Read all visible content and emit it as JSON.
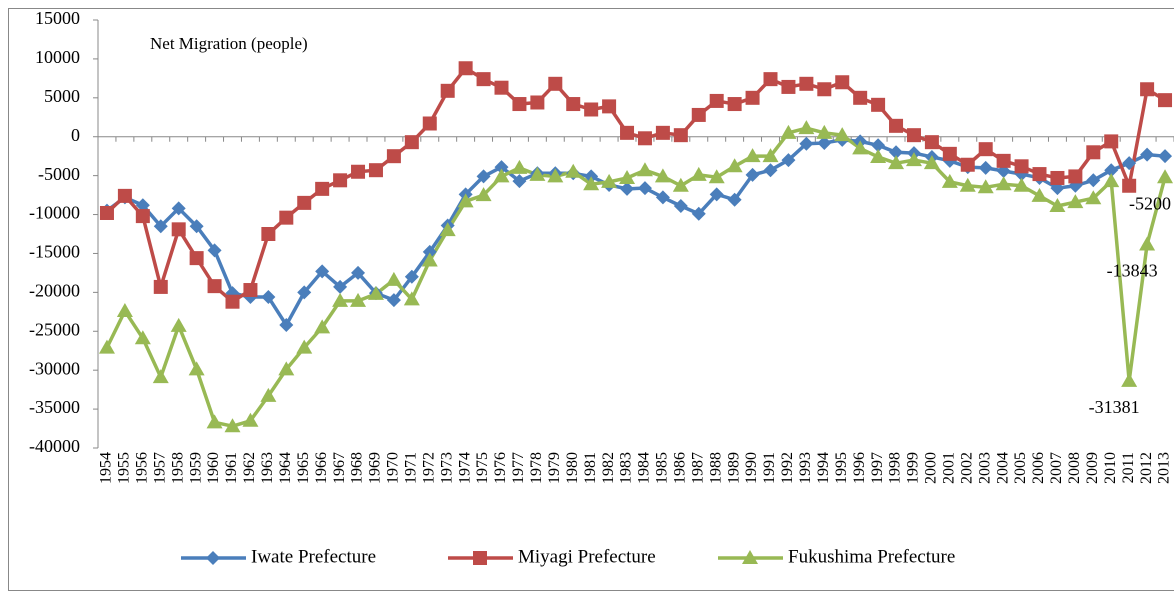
{
  "chart_data": {
    "type": "line",
    "title": "Net Migration (people)",
    "categories": [
      "1954",
      "1955",
      "1956",
      "1957",
      "1958",
      "1959",
      "1960",
      "1961",
      "1962",
      "1963",
      "1964",
      "1965",
      "1966",
      "1967",
      "1968",
      "1969",
      "1970",
      "1971",
      "1972",
      "1973",
      "1974",
      "1975",
      "1976",
      "1977",
      "1978",
      "1979",
      "1980",
      "1981",
      "1982",
      "1983",
      "1984",
      "1985",
      "1986",
      "1987",
      "1988",
      "1989",
      "1990",
      "1991",
      "1992",
      "1993",
      "1994",
      "1995",
      "1996",
      "1997",
      "1998",
      "1999",
      "2000",
      "2001",
      "2002",
      "2003",
      "2004",
      "2005",
      "2006",
      "2007",
      "2008",
      "2009",
      "2010",
      "2011",
      "2012",
      "2013"
    ],
    "series": [
      {
        "name": "Iwate Prefecture",
        "color": "#4a7ebb",
        "marker": "diamond",
        "values": [
          -9500,
          -7800,
          -8800,
          -11500,
          -9200,
          -11500,
          -14600,
          -20100,
          -20600,
          -20600,
          -24200,
          -20000,
          -17300,
          -19300,
          -17500,
          -20100,
          -21000,
          -18000,
          -14800,
          -11400,
          -7400,
          -5100,
          -3900,
          -5700,
          -4700,
          -4700,
          -4700,
          -5100,
          -6200,
          -6700,
          -6600,
          -7800,
          -8900,
          -9900,
          -7400,
          -8100,
          -4900,
          -4300,
          -3000,
          -900,
          -800,
          -400,
          -600,
          -1100,
          -2000,
          -2100,
          -2600,
          -3100,
          -3900,
          -4000,
          -4400,
          -4800,
          -5300,
          -6600,
          -6300,
          -5600,
          -4300,
          -3400,
          -2300,
          -2500
        ]
      },
      {
        "name": "Miyagi Prefecture",
        "color": "#be4b48",
        "marker": "square",
        "values": [
          -9800,
          -7600,
          -10200,
          -19300,
          -11900,
          -15600,
          -19200,
          -21200,
          -19700,
          -12500,
          -10400,
          -8500,
          -6700,
          -5600,
          -4500,
          -4300,
          -2500,
          -700,
          1700,
          5900,
          8800,
          7400,
          6300,
          4200,
          4400,
          6800,
          4200,
          3500,
          3900,
          500,
          -200,
          500,
          200,
          2800,
          4600,
          4200,
          5000,
          7400,
          6400,
          6800,
          6100,
          7000,
          5000,
          4100,
          1400,
          200,
          -700,
          -2200,
          -3600,
          -1600,
          -3100,
          -3800,
          -4800,
          -5300,
          -5100,
          -2000,
          -600,
          -6300,
          6100,
          4700
        ]
      },
      {
        "name": "Fukushima Prefecture",
        "color": "#98b954",
        "marker": "triangle",
        "values": [
          -27100,
          -22400,
          -25900,
          -30900,
          -24300,
          -29900,
          -36700,
          -37200,
          -36500,
          -33300,
          -29900,
          -27100,
          -24500,
          -21100,
          -21100,
          -20200,
          -18400,
          -20900,
          -15900,
          -12000,
          -8300,
          -7500,
          -5100,
          -4000,
          -4900,
          -5100,
          -4500,
          -6100,
          -5800,
          -5300,
          -4300,
          -5100,
          -6300,
          -4900,
          -5200,
          -3800,
          -2500,
          -2500,
          500,
          1100,
          500,
          200,
          -1500,
          -2600,
          -3400,
          -3000,
          -3400,
          -5800,
          -6300,
          -6500,
          -6100,
          -6300,
          -7600,
          -8900,
          -8400,
          -7900,
          -5700,
          -31381,
          -13843,
          -5200
        ],
        "value_labels": [
          null,
          null,
          null,
          null,
          null,
          null,
          null,
          null,
          null,
          null,
          null,
          null,
          null,
          null,
          null,
          null,
          null,
          null,
          null,
          null,
          null,
          null,
          null,
          null,
          null,
          null,
          null,
          null,
          null,
          null,
          null,
          null,
          null,
          null,
          null,
          null,
          null,
          null,
          null,
          null,
          null,
          null,
          null,
          null,
          null,
          null,
          null,
          null,
          null,
          null,
          null,
          null,
          null,
          null,
          null,
          null,
          null,
          "-31381",
          "-13843",
          "-5200"
        ]
      }
    ],
    "ylim": [
      -40000,
      15000
    ],
    "yticks": [
      -40000,
      -35000,
      -30000,
      -25000,
      -20000,
      -15000,
      -10000,
      -5000,
      0,
      5000,
      10000,
      15000
    ],
    "grid": false,
    "legend": "bottom"
  }
}
